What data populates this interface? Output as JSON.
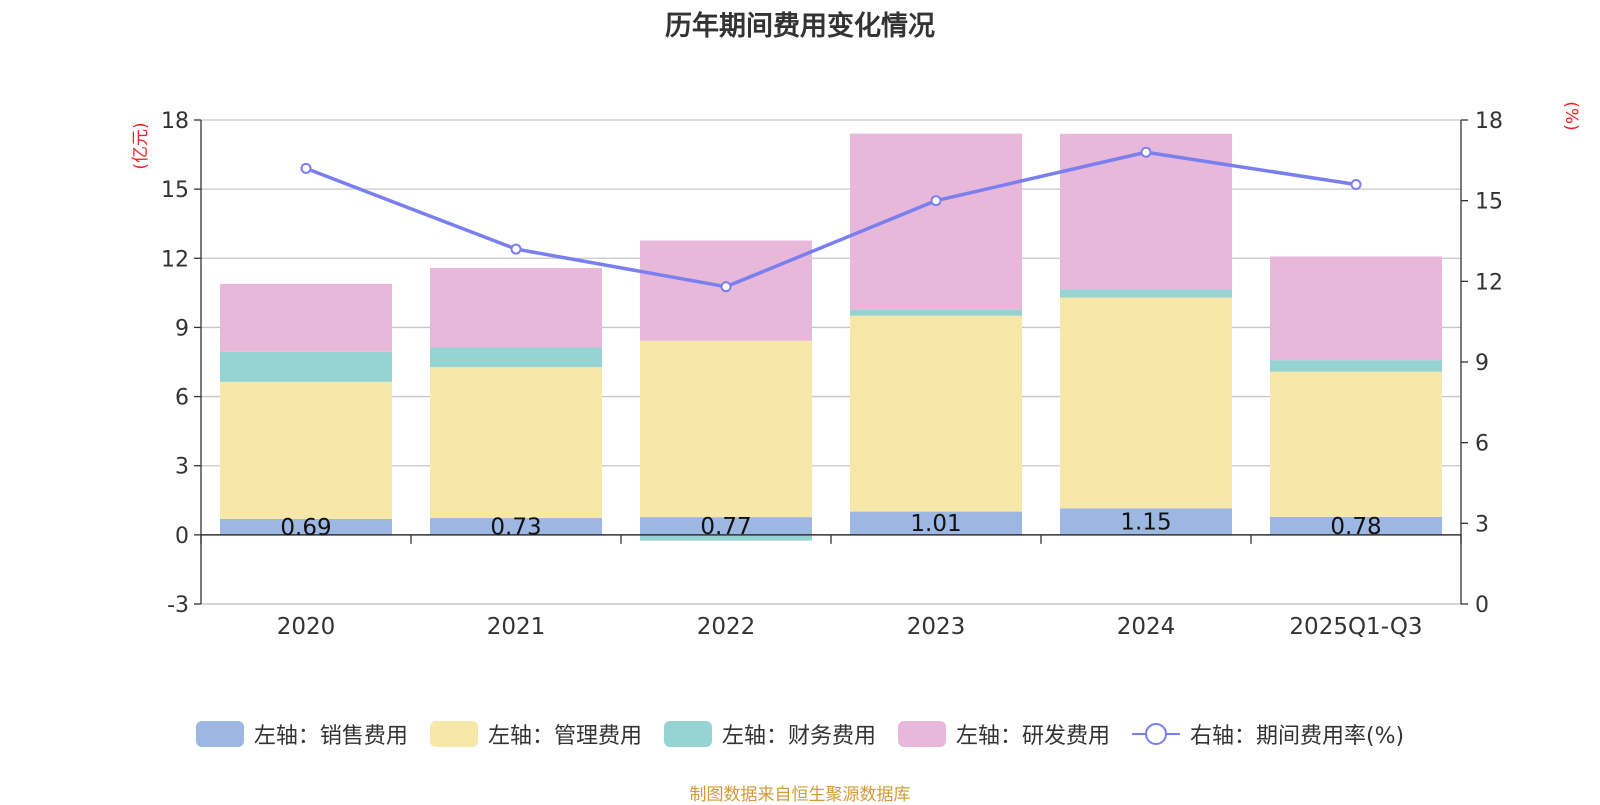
{
  "chart_data": {
    "type": "bar",
    "stacked": true,
    "title": "历年期间费用变化情况",
    "categories": [
      "2020",
      "2021",
      "2022",
      "2023",
      "2024",
      "2025Q1-Q3"
    ],
    "left_axis": {
      "unit": "(亿元)",
      "range": [
        -3,
        18
      ],
      "ticks": [
        -3,
        0,
        3,
        6,
        9,
        12,
        15,
        18
      ]
    },
    "right_axis": {
      "unit": "(%)",
      "range": [
        0,
        18
      ],
      "ticks": [
        0,
        3,
        6,
        9,
        12,
        15,
        18
      ]
    },
    "series": [
      {
        "name": "左轴：销售费用",
        "axis": "left",
        "color": "#9db7e3",
        "values": [
          0.69,
          0.73,
          0.77,
          1.01,
          1.15,
          0.78
        ],
        "labels": [
          "0.69",
          "0.73",
          "0.77",
          "1.01",
          "1.15",
          "0.78"
        ]
      },
      {
        "name": "左轴：管理费用",
        "axis": "left",
        "color": "#f7e7a8",
        "values": [
          5.95,
          6.55,
          7.65,
          8.5,
          9.15,
          6.3
        ]
      },
      {
        "name": "左轴：财务费用",
        "axis": "left",
        "color": "#96d3d3",
        "values": [
          1.3,
          0.85,
          -0.25,
          0.25,
          0.35,
          0.5
        ]
      },
      {
        "name": "左轴：研发费用",
        "axis": "left",
        "color": "#e7b8d9",
        "values": [
          2.95,
          3.45,
          4.35,
          7.65,
          6.75,
          4.5
        ]
      },
      {
        "name": "右轴：期间费用率(%)",
        "axis": "right",
        "type": "line",
        "color": "#7a7ff0",
        "values": [
          16.2,
          13.2,
          11.8,
          15.0,
          16.8,
          15.6
        ]
      }
    ]
  },
  "source_note": "制图数据来自恒生聚源数据库"
}
